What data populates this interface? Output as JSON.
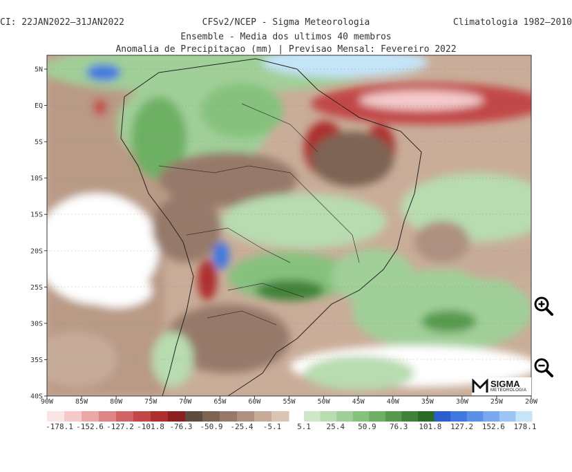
{
  "header": {
    "left": "CI: 22JAN2022–31JAN2022",
    "center_line1": "CFSv2/NCEP - Sigma Meteorologia",
    "center_line2": "Ensemble - Media dos ultimos 40 membros",
    "center_line3": "Anomalia de Precipitaçao (mm) | Previsao Mensal: Fevereiro 2022",
    "right": "Climatologia 1982–2010"
  },
  "map": {
    "lat_labels": [
      "5N",
      "EQ",
      "5S",
      "10S",
      "15S",
      "20S",
      "25S",
      "30S",
      "35S",
      "40S"
    ],
    "lon_labels": [
      "90W",
      "85W",
      "80W",
      "75W",
      "70W",
      "65W",
      "60W",
      "55W",
      "50W",
      "45W",
      "40W",
      "35W",
      "30W",
      "25W",
      "20W"
    ]
  },
  "colorbar": {
    "negative_colors": [
      "#fbe4e4",
      "#f4caca",
      "#eaa8a8",
      "#dd8585",
      "#d06464",
      "#c24747",
      "#ad2f2f",
      "#8c2020",
      "#5e4c40",
      "#7d6452",
      "#97796a",
      "#ae9180",
      "#c6ab99",
      "#dac5b4"
    ],
    "positive_colors": [
      "#cfe6c8",
      "#b8dbb0",
      "#a0cf98",
      "#86c27e",
      "#6db064",
      "#569a4e",
      "#3f8239",
      "#2c6a2a",
      "#2b5fd0",
      "#3f78e0",
      "#5a90e8",
      "#78a8f0",
      "#9cc4f5",
      "#c4e4f8"
    ],
    "labels": [
      "-178.1",
      "-152.6",
      "-127.2",
      "-101.8",
      "-76.3",
      "-50.9",
      "-25.4",
      "-5.1",
      "5.1",
      "25.4",
      "50.9",
      "76.3",
      "101.8",
      "127.2",
      "152.6",
      "178.1"
    ]
  },
  "logo": {
    "line1": "SIGMA",
    "line2": "METEOROLOGIA"
  },
  "controls": {
    "zoom_in_icon": "zoom-in-icon",
    "zoom_out_icon": "zoom-out-icon"
  }
}
